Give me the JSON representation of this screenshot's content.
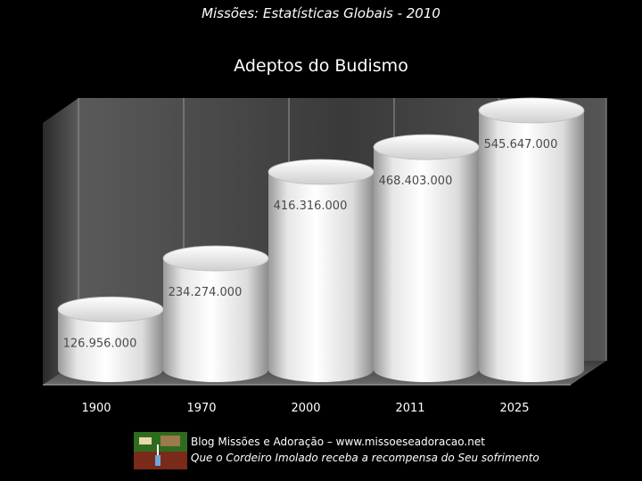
{
  "header": {
    "subtitle": "Missões: Estatísticas Globais - 2010"
  },
  "chart_data": {
    "type": "bar",
    "title": "Adeptos do Budismo",
    "categories": [
      "1900",
      "1970",
      "2000",
      "2011",
      "2025"
    ],
    "values": [
      126956000,
      234274000,
      416316000,
      468403000,
      545647000
    ],
    "value_labels": [
      "126.956.000",
      "234.274.000",
      "416.316.000",
      "468.403.000",
      "545.647.000"
    ],
    "xlabel": "",
    "ylabel": "",
    "grid": true,
    "legend": "none",
    "colors": {
      "bar": "#f2f2f2",
      "background": "#000000",
      "wall": "#4a4a4a"
    }
  },
  "footer": {
    "line1": "Blog Missões e Adoração – www.missoeseadoracao.net",
    "line2": "Que o Cordeiro Imolado receba a recompensa do Seu sofrimento",
    "logo_icon": "blog-logo-icon"
  }
}
